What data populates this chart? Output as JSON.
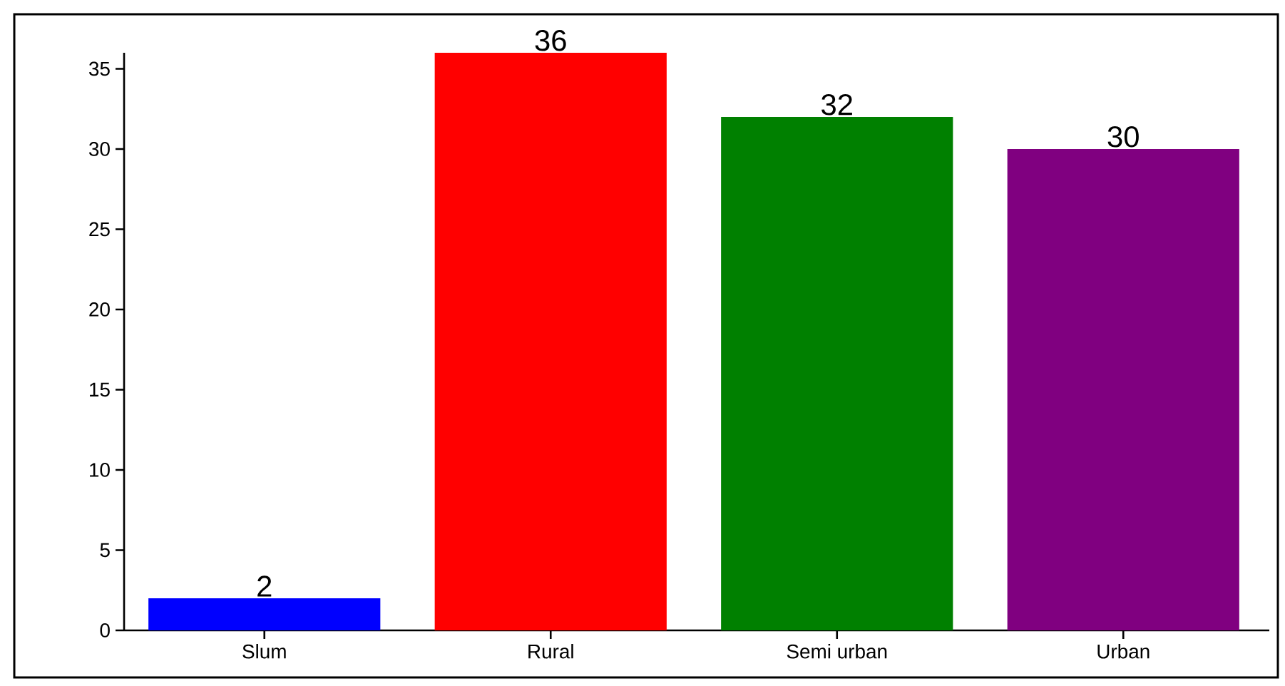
{
  "chart_data": {
    "type": "bar",
    "categories": [
      "Slum",
      "Rural",
      "Semi urban",
      "Urban"
    ],
    "values": [
      2,
      36,
      32,
      30
    ],
    "colors": [
      "#0000ff",
      "#ff0000",
      "#008000",
      "#800080"
    ],
    "ylim": [
      0,
      36
    ],
    "yticks": [
      0,
      5,
      10,
      15,
      20,
      25,
      30,
      35
    ],
    "data_labels": true,
    "grid": false
  }
}
